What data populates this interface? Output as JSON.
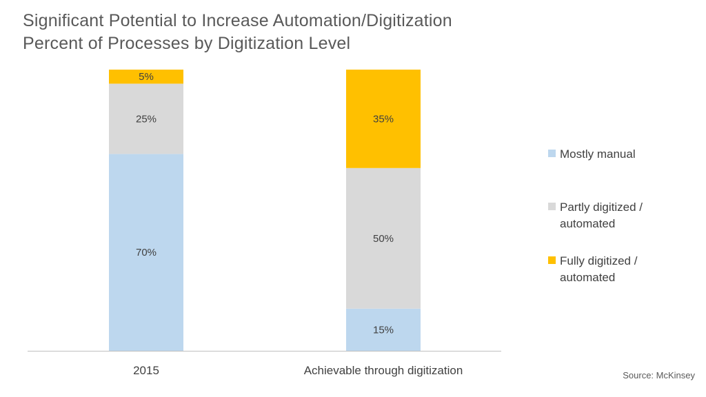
{
  "title_line1": "Significant Potential to Increase Automation/Digitization",
  "title_line2": "Percent of Processes by Digitization Level",
  "source": "Source: McKinsey",
  "chart_data": {
    "type": "bar",
    "stacked": true,
    "percent_stacked": true,
    "categories": [
      "2015",
      "Achievable through digitization"
    ],
    "series": [
      {
        "name": "Mostly manual",
        "values": [
          70,
          15
        ],
        "labels": [
          "70%",
          "15%"
        ],
        "color": "#BDD7EE"
      },
      {
        "name": "Partly digitized / automated",
        "values": [
          25,
          50
        ],
        "labels": [
          "25%",
          "50%"
        ],
        "color": "#D9D9D9"
      },
      {
        "name": "Fully digitized / automated",
        "values": [
          5,
          35
        ],
        "labels": [
          "5%",
          "35%"
        ],
        "color": "#FFC000"
      }
    ],
    "legend": {
      "position": "right",
      "items": [
        {
          "lines": [
            "Mostly manual"
          ],
          "color": "#BDD7EE"
        },
        {
          "lines": [
            "Partly digitized /",
            "automated"
          ],
          "color": "#D9D9D9"
        },
        {
          "lines": [
            "Fully digitized /",
            "automated"
          ],
          "color": "#FFC000"
        }
      ]
    },
    "ylim": [
      0,
      100
    ],
    "grid": false,
    "xlabel": "",
    "ylabel": ""
  }
}
